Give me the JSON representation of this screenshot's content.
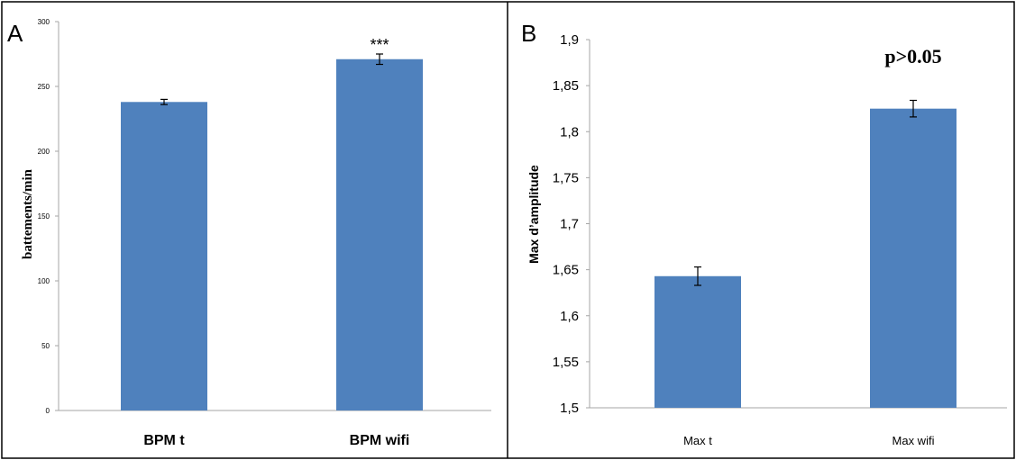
{
  "chart_data": [
    {
      "type": "bar",
      "panel_label": "A",
      "categories": [
        "BPM t",
        "BPM wifi"
      ],
      "values": [
        238,
        271
      ],
      "errors": [
        2,
        4
      ],
      "ylabel": "battements/min",
      "ylim": [
        0,
        300
      ],
      "yticks": [
        "0",
        "50",
        "100",
        "150",
        "200",
        "250",
        "300"
      ],
      "annotation": "***",
      "bar_color": "#4f81bd",
      "grid": false
    },
    {
      "type": "bar",
      "panel_label": "B",
      "categories": [
        "Max t",
        "Max wifi"
      ],
      "values": [
        1.643,
        1.825
      ],
      "errors": [
        0.01,
        0.009
      ],
      "ylabel": "Max d’amplitude",
      "ylim": [
        1.5,
        1.9
      ],
      "yticks": [
        "1,5",
        "1,55",
        "1,6",
        "1,65",
        "1,7",
        "1,75",
        "1,8",
        "1,85",
        "1,9"
      ],
      "annotation": "p>0.05",
      "bar_color": "#4f81bd",
      "grid": false
    }
  ]
}
